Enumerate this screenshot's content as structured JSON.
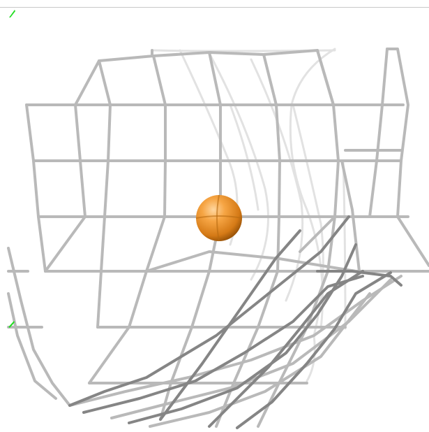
{
  "viewer": {
    "background": "#ffffff",
    "mesh_color": "#b8b8b8",
    "mesh_shadow": "#7a7a7a",
    "sphere_color": "#f0952b",
    "axis_color": "#22dd22"
  }
}
